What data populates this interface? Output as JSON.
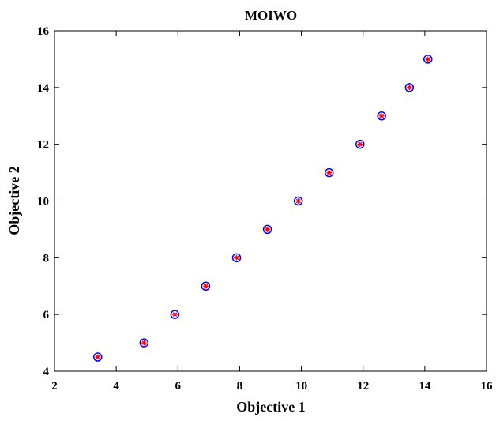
{
  "chart_data": {
    "type": "scatter",
    "title": "MOIWO",
    "xlabel": "Objective 1",
    "ylabel": "Objective 2",
    "xlim": [
      2,
      16
    ],
    "ylim": [
      4,
      16
    ],
    "xticks": [
      2,
      4,
      6,
      8,
      10,
      12,
      14,
      16
    ],
    "yticks": [
      4,
      6,
      8,
      10,
      12,
      14,
      16
    ],
    "xtick_labels": [
      "2",
      "4",
      "6",
      "8",
      "10",
      "12",
      "14",
      "16"
    ],
    "ytick_labels": [
      "4",
      "6",
      "8",
      "10",
      "12",
      "14",
      "16"
    ],
    "grid": false,
    "marker": {
      "outer": "circle",
      "inner": "asterisk",
      "outer_color": "#0000ff",
      "inner_color": "#ff0000"
    },
    "points": [
      {
        "x": 3.4,
        "y": 4.5
      },
      {
        "x": 4.9,
        "y": 5.0
      },
      {
        "x": 5.9,
        "y": 6.0
      },
      {
        "x": 6.9,
        "y": 7.0
      },
      {
        "x": 7.9,
        "y": 8.0
      },
      {
        "x": 8.9,
        "y": 9.0
      },
      {
        "x": 9.9,
        "y": 10.0
      },
      {
        "x": 10.9,
        "y": 11.0
      },
      {
        "x": 11.9,
        "y": 12.0
      },
      {
        "x": 12.6,
        "y": 13.0
      },
      {
        "x": 13.5,
        "y": 14.0
      },
      {
        "x": 14.1,
        "y": 15.0
      }
    ]
  }
}
